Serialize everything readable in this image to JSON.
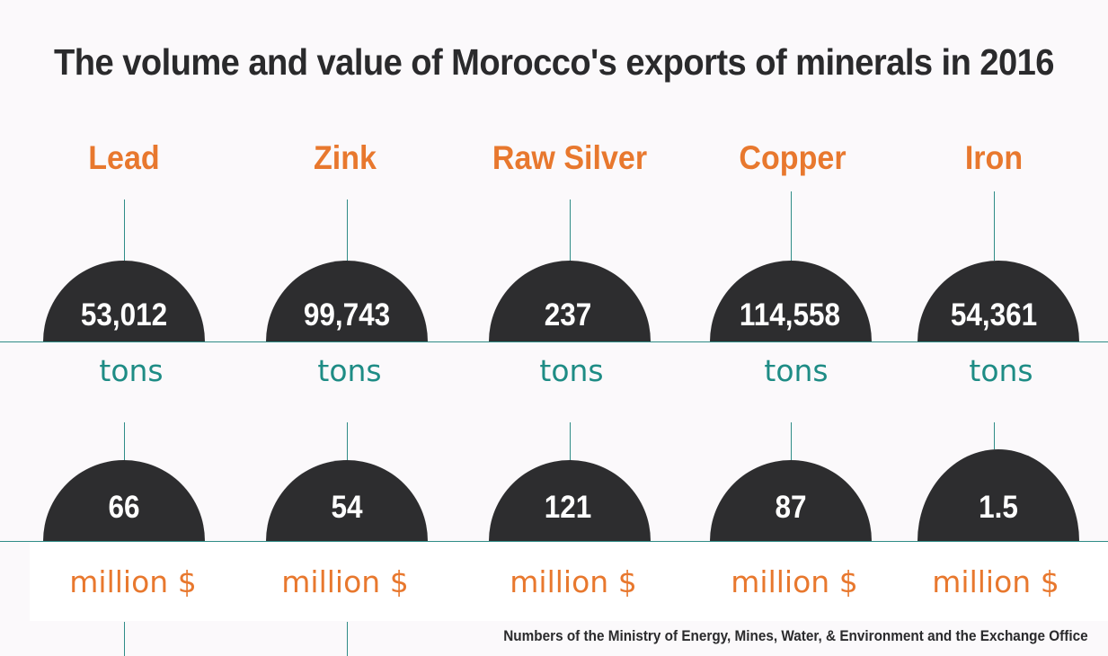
{
  "title": "The volume and value of Morocco's exports of minerals in 2016",
  "minerals": [
    {
      "name": "Lead",
      "volume": "53,012",
      "volume_unit": "tons",
      "value": "66",
      "value_unit": "million $"
    },
    {
      "name": "Zink",
      "volume": "99,743",
      "volume_unit": "tons",
      "value": "54",
      "value_unit": "million $"
    },
    {
      "name": "Raw Silver",
      "volume": "237",
      "volume_unit": "tons",
      "value": "121",
      "value_unit": "million $"
    },
    {
      "name": "Copper",
      "volume": "114,558",
      "volume_unit": "tons",
      "value": "87",
      "value_unit": "million $"
    },
    {
      "name": "Iron",
      "volume": "54,361",
      "volume_unit": "tons",
      "value": "1.5",
      "value_unit": "million $"
    }
  ],
  "source": "Numbers of the Ministry of Energy, Mines, Water, & Environment and the Exchange Office",
  "colors": {
    "title": "#2a2a2c",
    "mineral_name": "#e8782e",
    "dome": "#2d2d2f",
    "tons": "#1e8c85",
    "money": "#e8782e",
    "line": "#2f8c87"
  }
}
